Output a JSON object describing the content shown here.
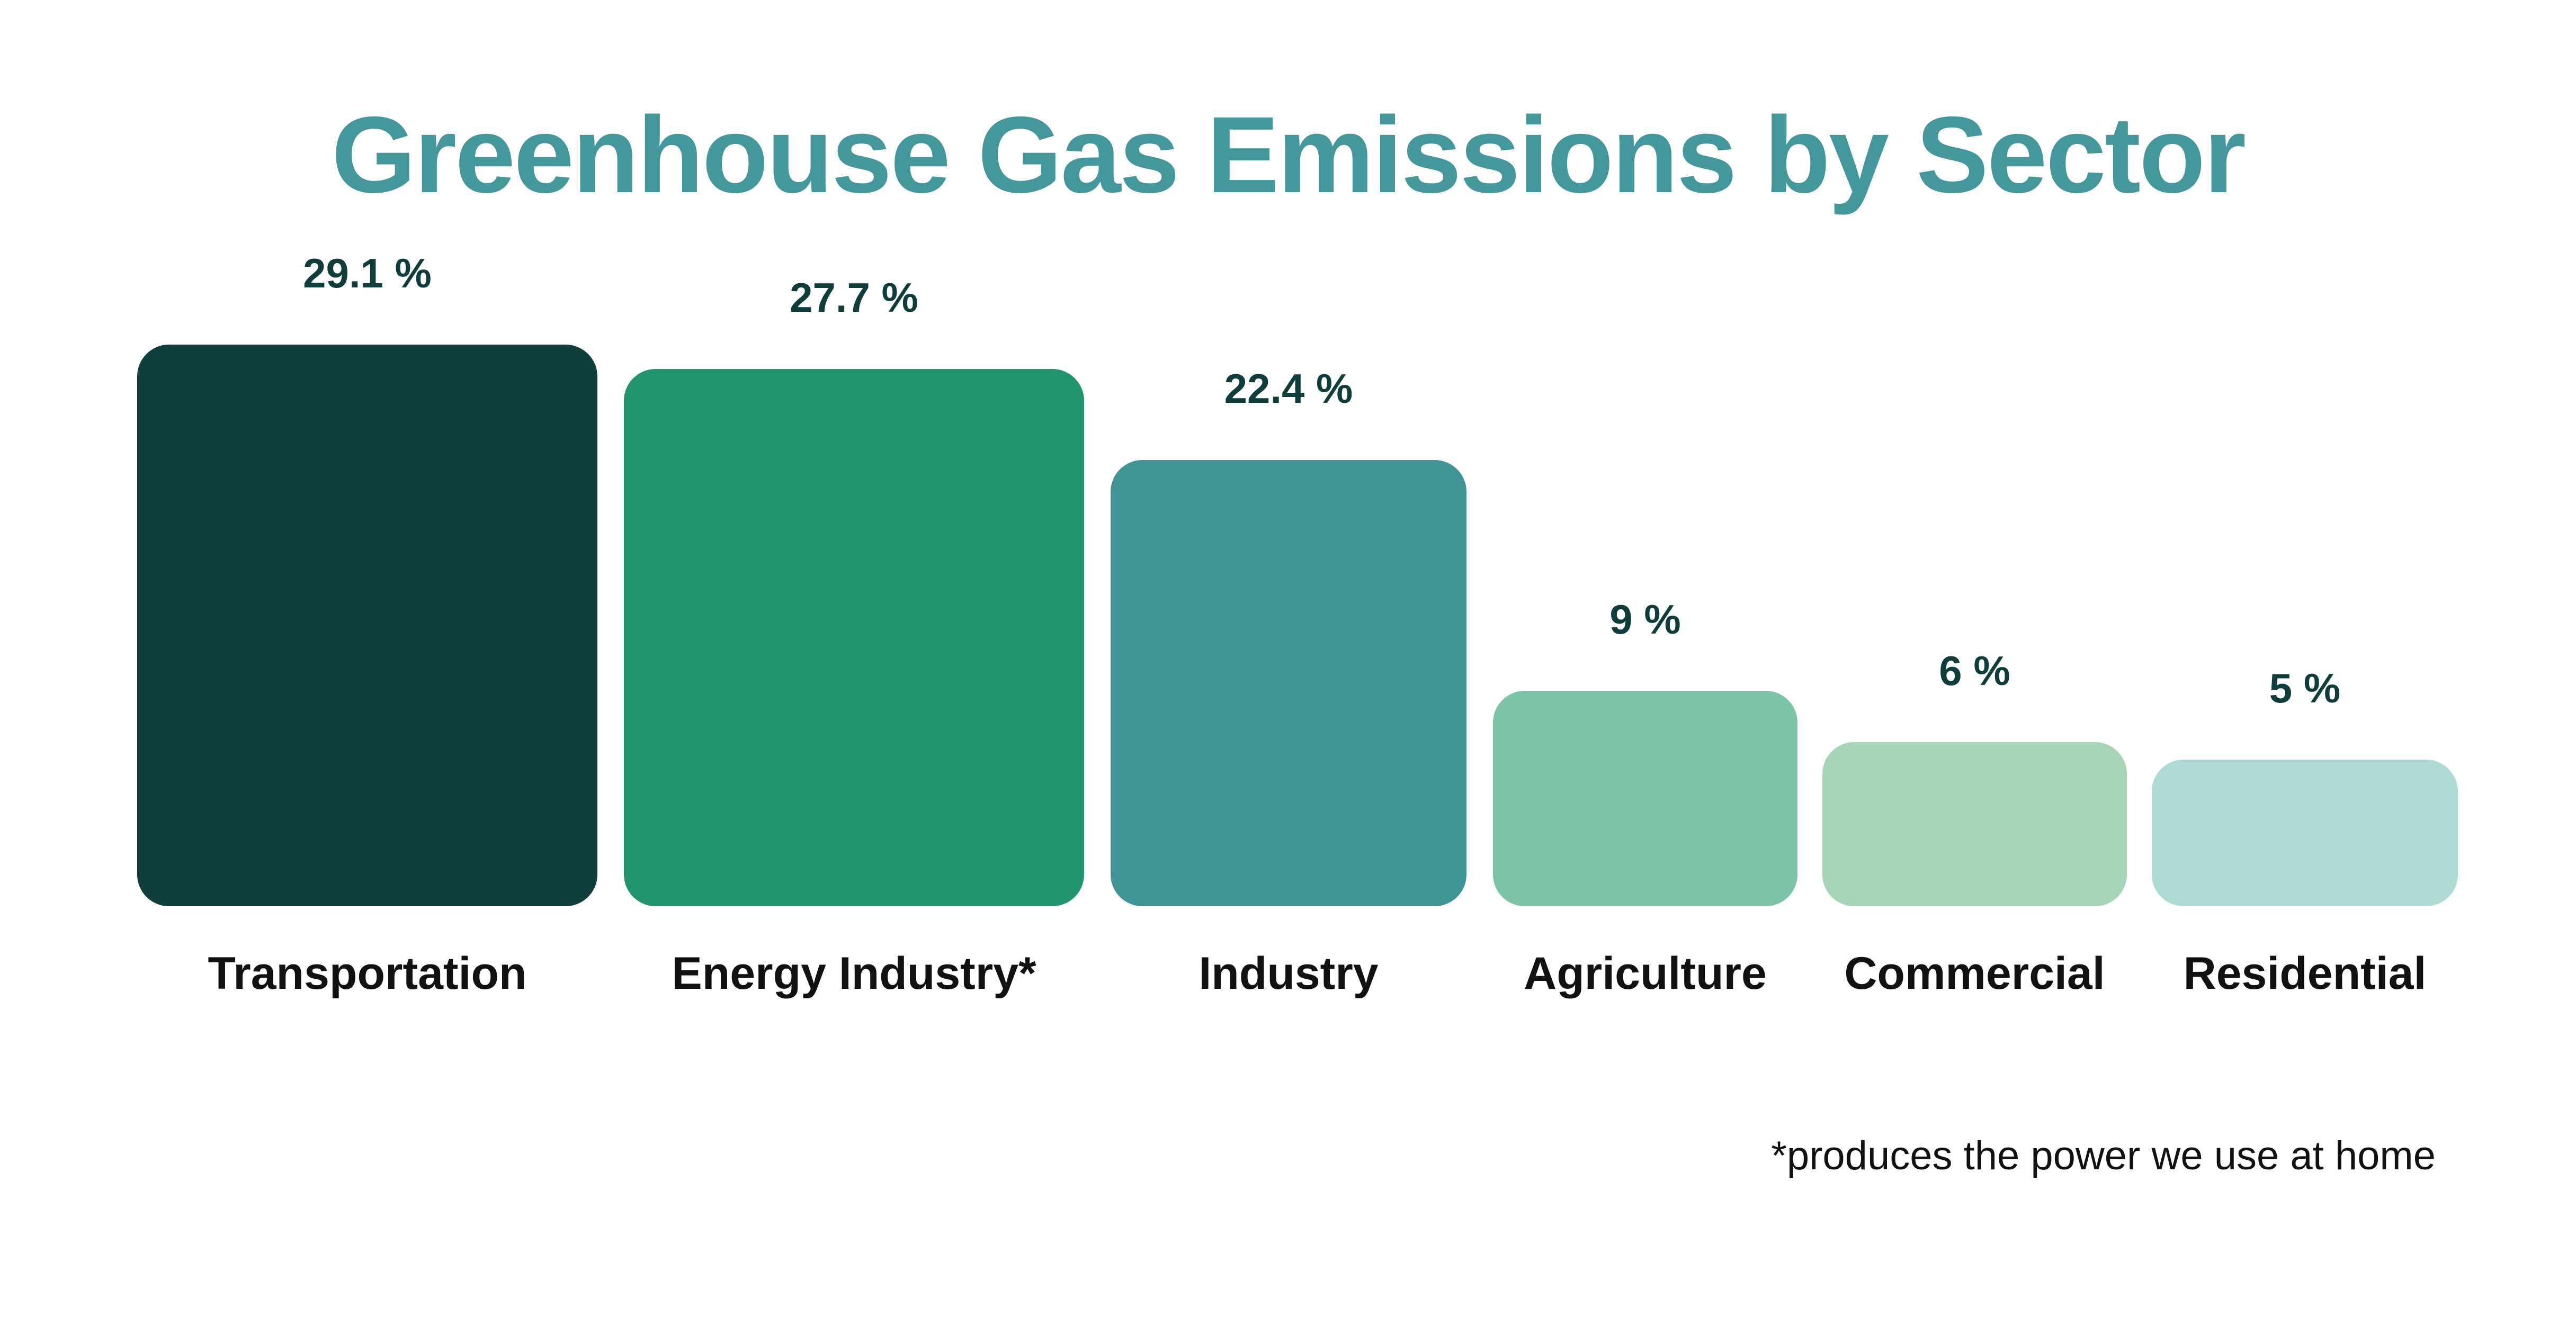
{
  "chart_data": {
    "type": "bar",
    "title": "Greenhouse Gas Emissions by Sector",
    "categories": [
      "Transportation",
      "Energy Industry*",
      "Industry",
      "Agriculture",
      "Commercial",
      "Residential"
    ],
    "values": [
      29.1,
      27.7,
      22.4,
      9,
      6,
      5
    ],
    "value_labels": [
      "29.1 %",
      "27.7 %",
      "22.4 %",
      "9 %",
      "6 %",
      "5 %"
    ],
    "colors": [
      "#0f3e3c",
      "#21936e",
      "#419496",
      "#7bc4a8",
      "#a6d4b6",
      "#addbd3"
    ],
    "xlabel": "",
    "ylabel": "",
    "grid": false,
    "footnote": "*produces the power we use at home"
  }
}
